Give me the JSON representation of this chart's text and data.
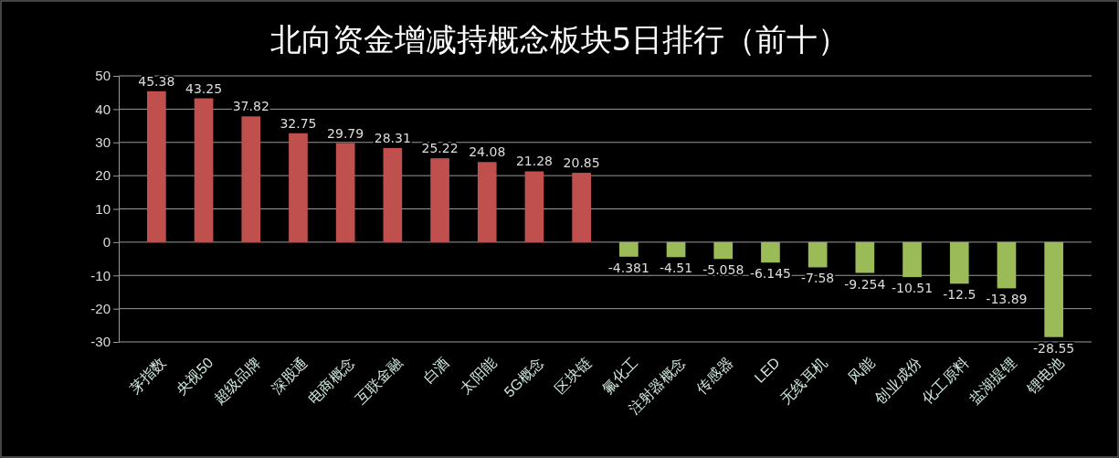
{
  "chart_data": {
    "type": "bar",
    "title": "北向资金增减持概念板块5日排行（前十）",
    "categories": [
      "茅指数",
      "央视50",
      "超级品牌",
      "深股通",
      "电商概念",
      "互联金融",
      "白酒",
      "太阳能",
      "5G概念",
      "区块链",
      "氟化工",
      "注射器概念",
      "传感器",
      "LED",
      "无线耳机",
      "风能",
      "创业成份",
      "化工原料",
      "盐湖提锂",
      "锂电池"
    ],
    "values": [
      45.38,
      43.25,
      37.82,
      32.75,
      29.79,
      28.31,
      25.22,
      24.08,
      21.28,
      20.85,
      -4.381,
      -4.51,
      -5.058,
      -6.145,
      -7.58,
      -9.254,
      -10.51,
      -12.5,
      -13.89,
      -28.55
    ],
    "colors": [
      "#c0504d",
      "#c0504d",
      "#c0504d",
      "#c0504d",
      "#c0504d",
      "#c0504d",
      "#c0504d",
      "#c0504d",
      "#c0504d",
      "#c0504d",
      "#9bbb59",
      "#9bbb59",
      "#9bbb59",
      "#9bbb59",
      "#9bbb59",
      "#9bbb59",
      "#9bbb59",
      "#9bbb59",
      "#9bbb59",
      "#9bbb59"
    ],
    "ylim": [
      -30,
      50
    ],
    "yticks": [
      -30,
      -20,
      -10,
      0,
      10,
      20,
      30,
      40,
      50
    ],
    "grid": "y",
    "data_labels": true
  }
}
